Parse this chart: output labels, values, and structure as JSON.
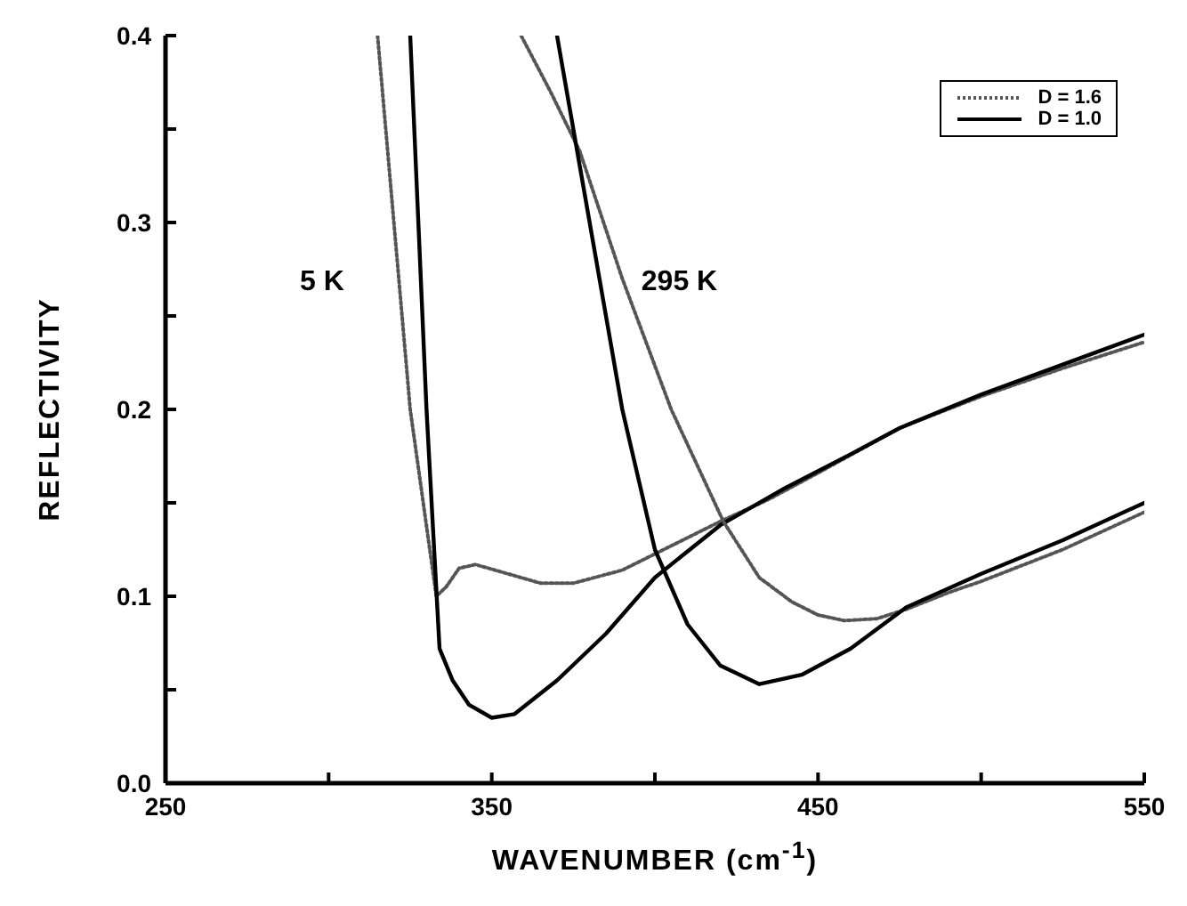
{
  "chart_data": {
    "type": "line",
    "xlabel": "WAVENUMBER (cm$^{-1}$)",
    "ylabel": "REFLECTIVITY",
    "xlim": [
      250,
      550
    ],
    "xticks": [
      250,
      {
        "value": 300,
        "label": null
      },
      350,
      {
        "value": 400,
        "label": null
      },
      450,
      {
        "value": 500,
        "label": null
      },
      550
    ],
    "ylim": [
      0,
      0.4
    ],
    "yticks": [
      {
        "value": 0,
        "label": "0.0"
      },
      {
        "value": 0.05,
        "label": null
      },
      0.1,
      {
        "value": 0.15,
        "label": null
      },
      0.2,
      {
        "value": 0.25,
        "label": null
      },
      0.3,
      {
        "value": 0.35,
        "label": null
      },
      0.4
    ],
    "legend": "top right",
    "grid": false,
    "marker": "none",
    "annotations": [
      "5 K",
      "295 K"
    ],
    "series": [
      {
        "name": "D = 1.6",
        "color": "#555555",
        "line_style": "dotted",
        "x": [
          315,
          325,
          333,
          336,
          340,
          345,
          355,
          365,
          375,
          390,
          405,
          420,
          435,
          450,
          475,
          500,
          525,
          550
        ],
        "values": [
          0.4,
          0.2,
          0.1,
          0.105,
          0.115,
          0.117,
          0.112,
          0.107,
          0.107,
          0.114,
          0.127,
          0.14,
          0.152,
          0.166,
          0.19,
          0.207,
          0.222,
          0.236
        ]
      },
      {
        "name": "D = 1.0",
        "color": "#000000",
        "line_style": "solid",
        "x": [
          325,
          330,
          334,
          338,
          343,
          350,
          357,
          370,
          385,
          400,
          420,
          440,
          460,
          475,
          500,
          525,
          550
        ],
        "values": [
          0.4,
          0.2,
          0.072,
          0.055,
          0.042,
          0.035,
          0.037,
          0.055,
          0.08,
          0.11,
          0.138,
          0.158,
          0.176,
          0.19,
          0.208,
          0.224,
          0.24
        ]
      },
      {
        "color": "#555555",
        "line_style": "dotted",
        "x": [
          359,
          368,
          377,
          390,
          405,
          421,
          432,
          442,
          450,
          458,
          468,
          477,
          490,
          500,
          525,
          550
        ],
        "values": [
          0.4,
          0.37,
          0.338,
          0.27,
          0.2,
          0.14,
          0.11,
          0.097,
          0.09,
          0.087,
          0.088,
          0.093,
          0.102,
          0.108,
          0.125,
          0.145
        ]
      },
      {
        "color": "#000000",
        "line_style": "solid",
        "x": [
          370,
          380,
          390,
          400,
          410,
          420,
          432,
          445,
          460,
          477,
          500,
          525,
          550
        ],
        "values": [
          0.4,
          0.3,
          0.2,
          0.125,
          0.085,
          0.063,
          0.053,
          0.058,
          0.072,
          0.094,
          0.112,
          0.13,
          0.15
        ]
      }
    ]
  }
}
